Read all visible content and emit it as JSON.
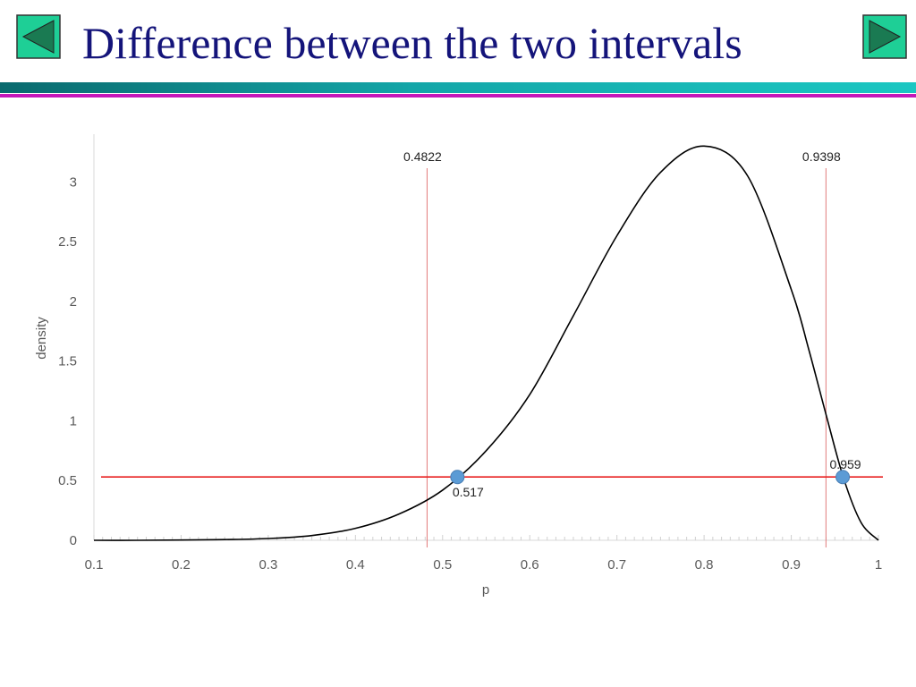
{
  "slide": {
    "title": "Difference between the two intervals",
    "prev_icon": "triangle-left-icon",
    "next_icon": "triangle-right-icon",
    "colors": {
      "title": "#14147a",
      "nav_fill": "#1ecf96",
      "nav_triangle": "#1a7a52",
      "rule_teal": "#0f7f85",
      "rule_magenta": "#c418b9"
    }
  },
  "chart_data": {
    "type": "line",
    "xlabel": "p",
    "ylabel": "density",
    "xlim": [
      0.1,
      1.0
    ],
    "ylim": [
      0,
      3.4
    ],
    "xticks": [
      0.1,
      0.2,
      0.3,
      0.4,
      0.5,
      0.6,
      0.7,
      0.8,
      0.9,
      1.0
    ],
    "xtick_labels": [
      "0.1",
      "0.2",
      "0.3",
      "0.4",
      "0.5",
      "0.6",
      "0.7",
      "0.8",
      "0.9",
      "1"
    ],
    "yticks": [
      0,
      0.5,
      1,
      1.5,
      2,
      2.5,
      3
    ],
    "ytick_labels": [
      "0",
      "0.5",
      "1",
      "1.5",
      "2",
      "2.5",
      "3"
    ],
    "grid": false,
    "series": [
      {
        "color": "#000000",
        "x": [
          0.1,
          0.15,
          0.2,
          0.25,
          0.3,
          0.35,
          0.4,
          0.45,
          0.5,
          0.55,
          0.6,
          0.65,
          0.7,
          0.75,
          0.8,
          0.85,
          0.9,
          0.92,
          0.94,
          0.96,
          0.98,
          1.0
        ],
        "y": [
          0.0,
          0.0,
          0.002,
          0.006,
          0.015,
          0.04,
          0.1,
          0.22,
          0.42,
          0.75,
          1.22,
          1.88,
          2.55,
          3.08,
          3.3,
          3.05,
          2.1,
          1.6,
          1.05,
          0.52,
          0.15,
          0.0
        ]
      }
    ],
    "hline": {
      "y": 0.53,
      "color": "#e82020"
    },
    "vlines": [
      {
        "x": 0.4822,
        "label": "0.4822",
        "color": "#e27a7a"
      },
      {
        "x": 0.9398,
        "label": "0.9398",
        "color": "#e27a7a"
      }
    ],
    "points": [
      {
        "x": 0.517,
        "y": 0.53,
        "label": "0.517",
        "color": "#5b9bd5"
      },
      {
        "x": 0.959,
        "y": 0.53,
        "label": "0.959",
        "color": "#5b9bd5"
      }
    ]
  }
}
